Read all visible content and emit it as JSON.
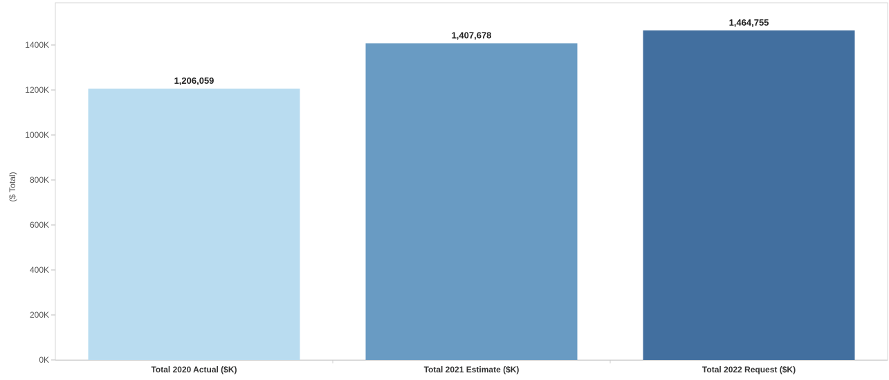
{
  "chart_data": {
    "type": "bar",
    "title": "",
    "xlabel": "",
    "ylabel": "($ Total)",
    "categories": [
      "Total 2020 Actual ($K)",
      "Total 2021 Estimate ($K)",
      "Total 2022 Request ($K)"
    ],
    "values": [
      1206059,
      1407678,
      1464755
    ],
    "data_labels": [
      "1,206,059",
      "1,407,678",
      "1,464,755"
    ],
    "bar_colors": [
      "#b9dcf0",
      "#699bc3",
      "#426f9f"
    ],
    "ylim": [
      0,
      1500000
    ],
    "yticks": [
      {
        "value": 0,
        "label": "0K"
      },
      {
        "value": 200000,
        "label": "200K"
      },
      {
        "value": 400000,
        "label": "400K"
      },
      {
        "value": 600000,
        "label": "600K"
      },
      {
        "value": 800000,
        "label": "800K"
      },
      {
        "value": 1000000,
        "label": "1000K"
      },
      {
        "value": 1200000,
        "label": "1200K"
      },
      {
        "value": 1400000,
        "label": "1400K"
      }
    ],
    "grid": false,
    "legend": "none"
  }
}
